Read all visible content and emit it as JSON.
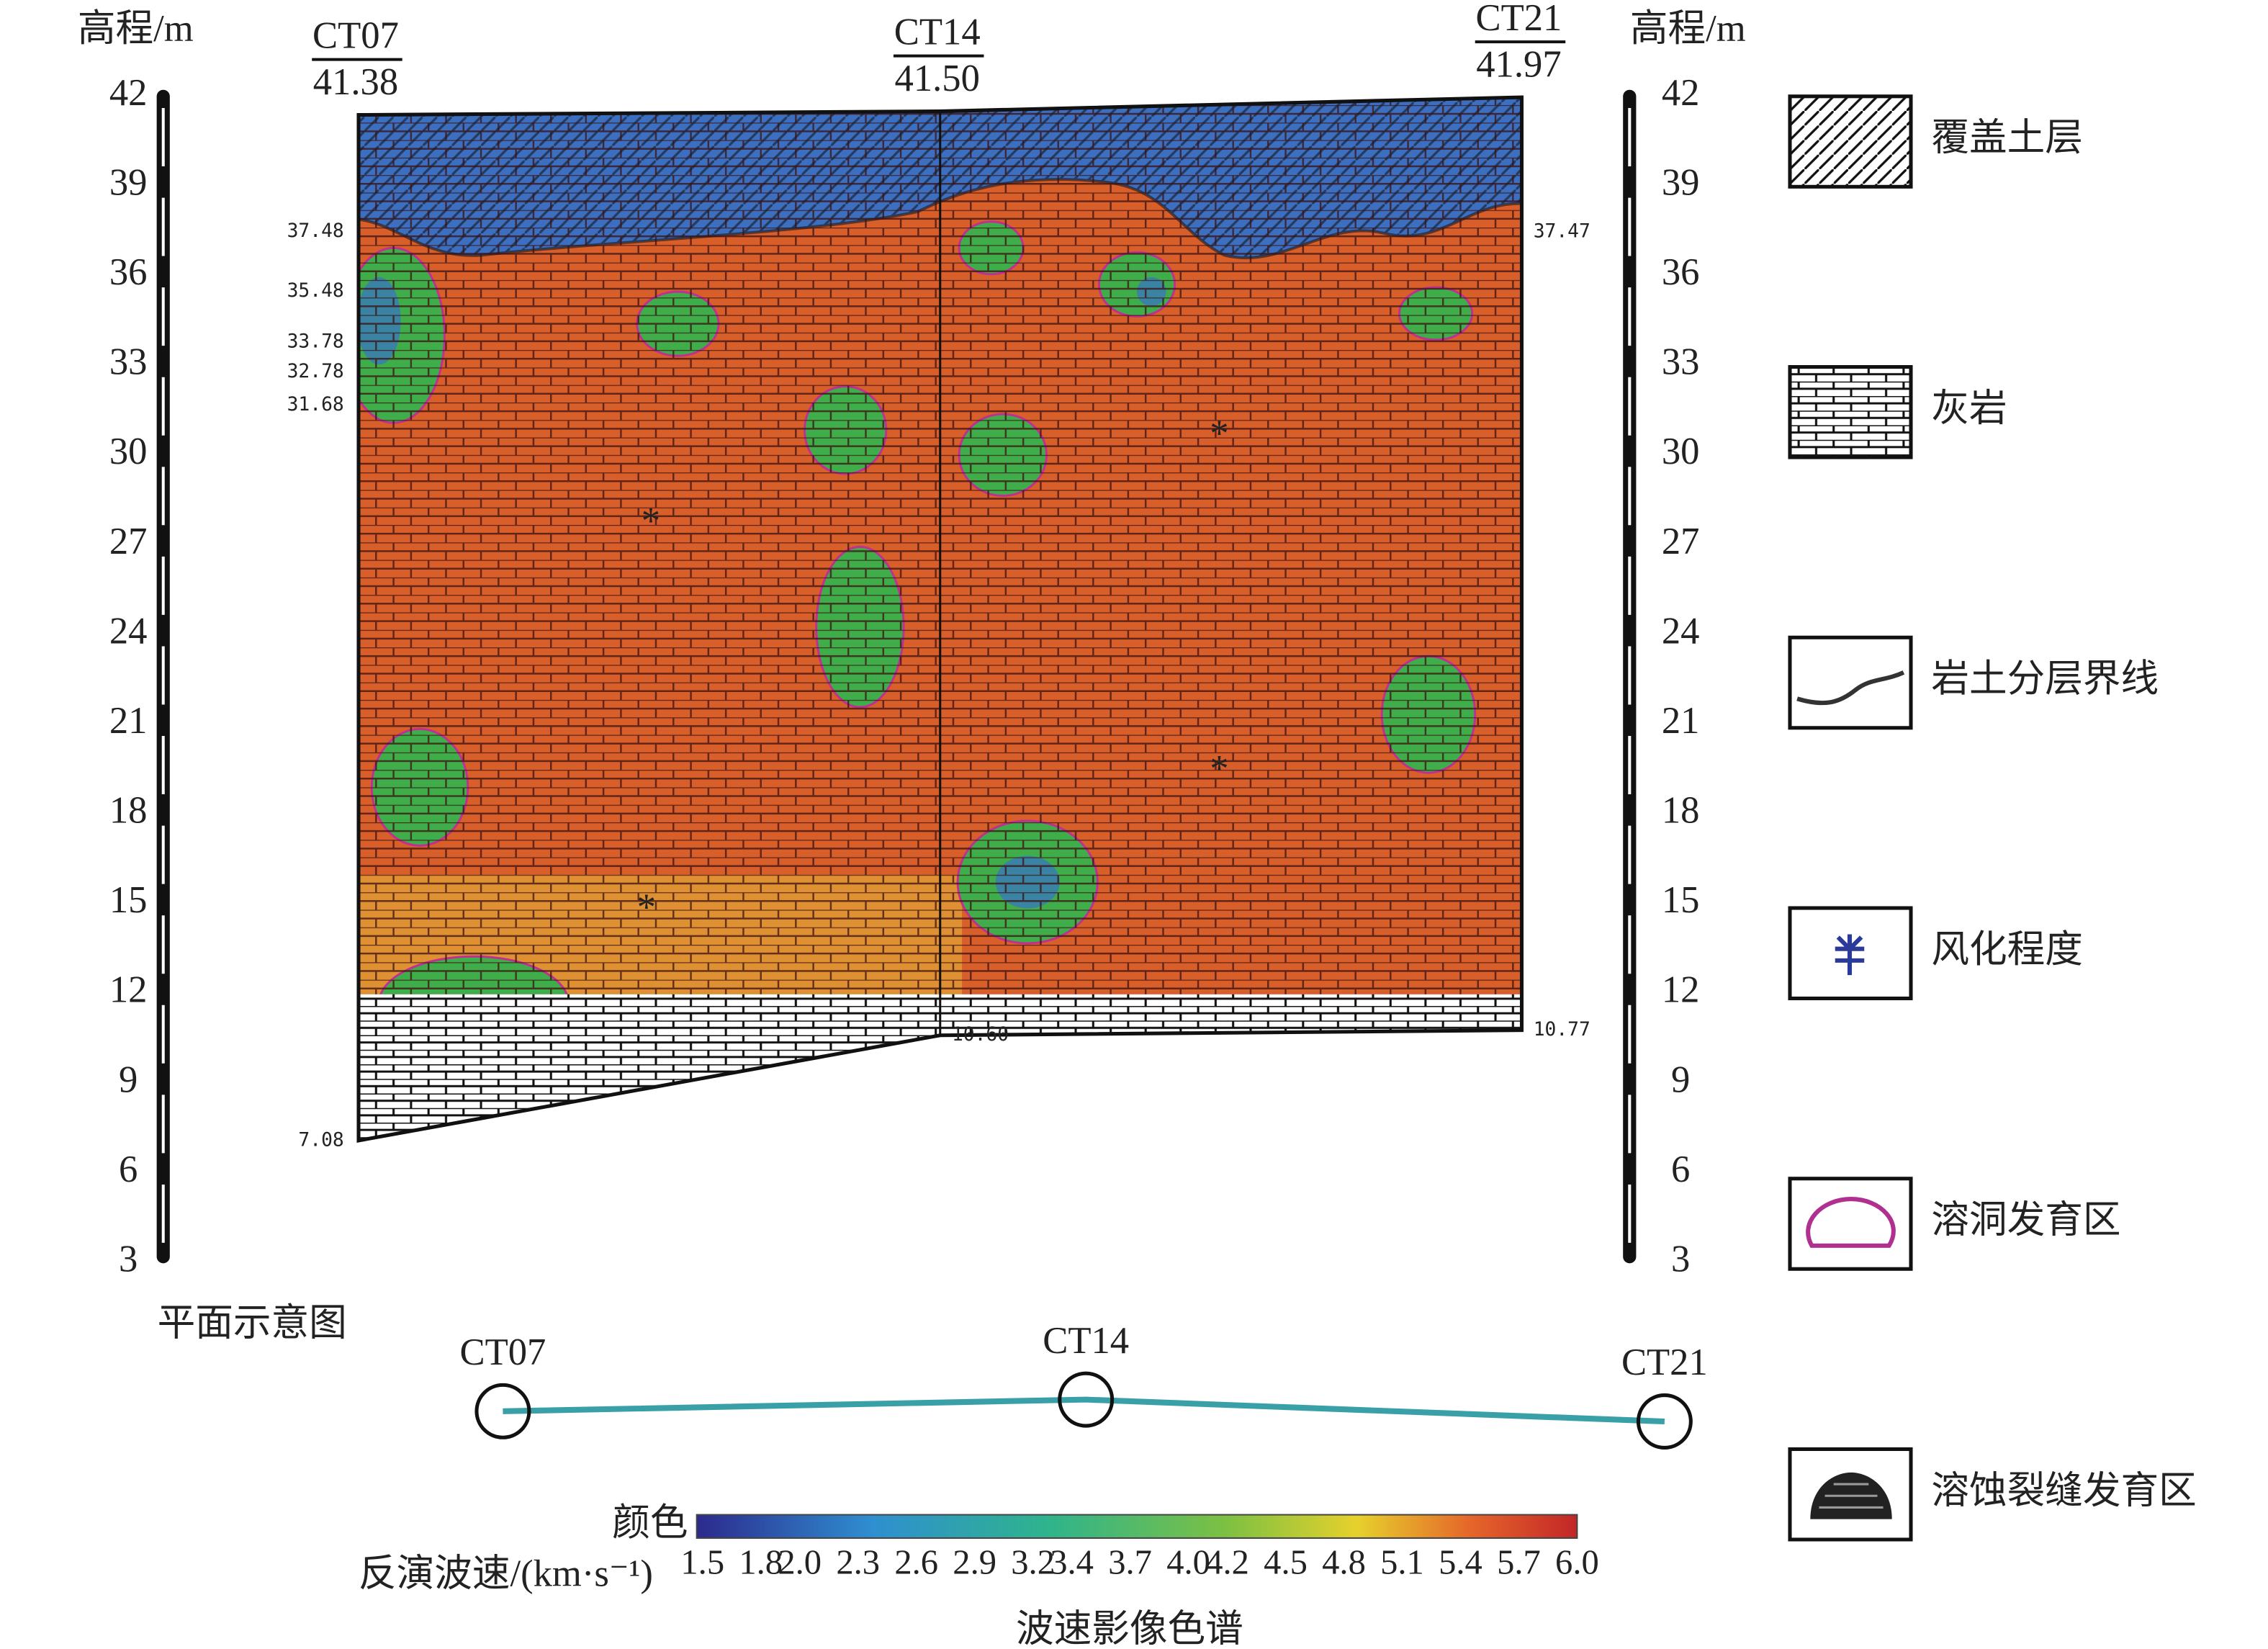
{
  "left_axis": {
    "label": "高程/m",
    "ticks": [
      42,
      39,
      36,
      33,
      30,
      27,
      24,
      21,
      18,
      15,
      12,
      9,
      6,
      3
    ]
  },
  "right_axis": {
    "label": "高程/m",
    "ticks": [
      42,
      39,
      36,
      33,
      30,
      27,
      24,
      21,
      18,
      15,
      12,
      9,
      6,
      3
    ]
  },
  "boreholes": [
    {
      "name": "CT07",
      "elevation": "41.38"
    },
    {
      "name": "CT14",
      "elevation": "41.50"
    },
    {
      "name": "CT21",
      "elevation": "41.97"
    }
  ],
  "section_labels": {
    "left": [
      "37.48",
      "35.48",
      "33.78",
      "32.78",
      "31.68",
      "7.08"
    ],
    "middle": [
      "10.60"
    ],
    "right": [
      "37.47",
      "10.77"
    ]
  },
  "plan": {
    "title": "平面示意图",
    "stations": [
      "CT07",
      "CT14",
      "CT21"
    ]
  },
  "colorbar": {
    "color_label": "颜色",
    "label": "反演波速/(km·s⁻¹)",
    "ticks": [
      1.5,
      1.8,
      {
        "value": 2,
        "label": "2.0"
      },
      2.3,
      2.6,
      2.9,
      3.2,
      3.4,
      3.7,
      {
        "value": 4,
        "label": "4.0"
      },
      4.2,
      4.5,
      4.8,
      5.1,
      5.4,
      5.7,
      {
        "value": 6,
        "label": "6.0"
      }
    ],
    "caption": "波速影像色谱"
  },
  "legend": [
    "覆盖土层",
    "灰岩",
    "岩土分层界线",
    "风化程度",
    "溶洞发育区",
    "溶蚀裂缝发育区"
  ]
}
